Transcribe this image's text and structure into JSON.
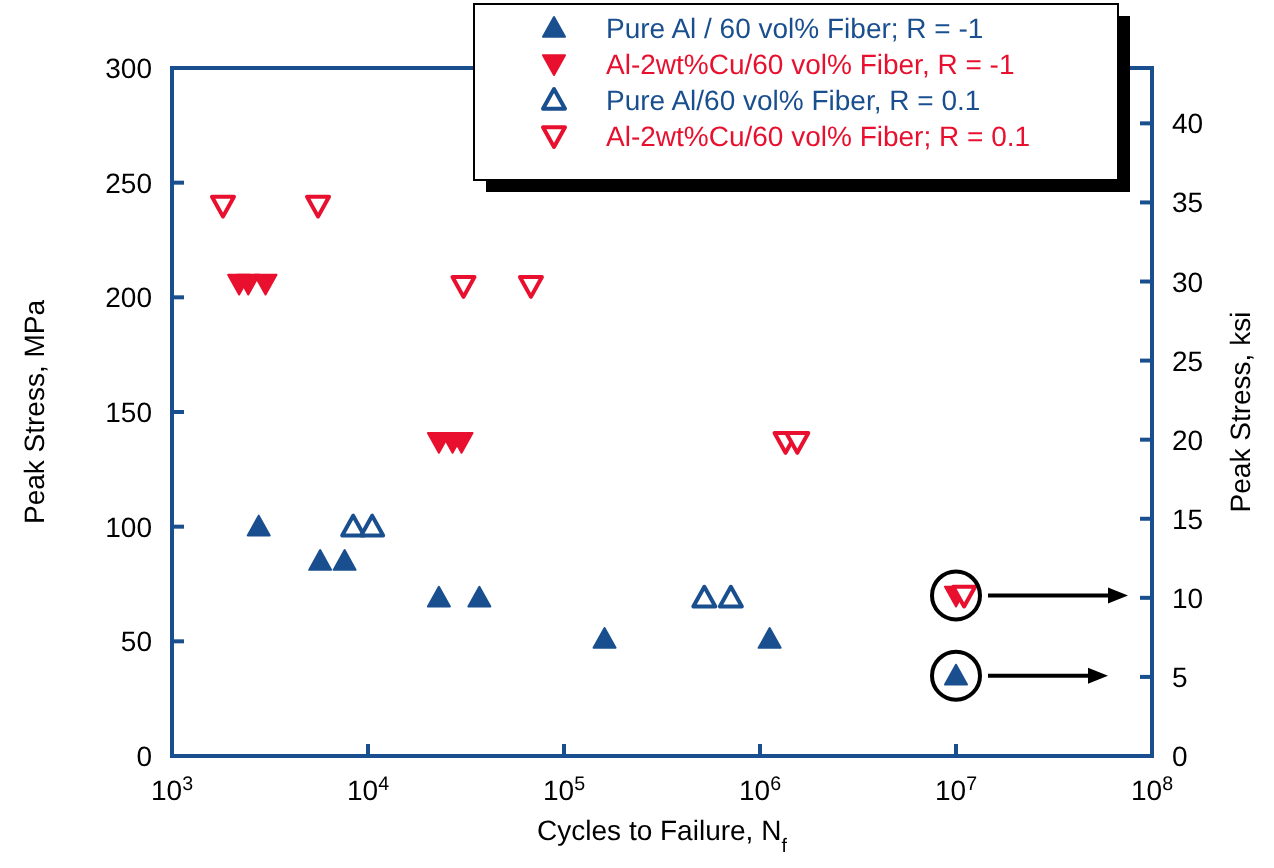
{
  "chart_data": {
    "type": "scatter",
    "xlabel": "Cycles to Failure, N$_{f}$",
    "ylabel": "Peak Stress, MPa",
    "y2label": "Peak Stress, ksi",
    "log": "x",
    "xlim": [
      1000,
      100000000
    ],
    "xticks": [
      {
        "value": 1000,
        "label": "10$^{3}$"
      },
      {
        "value": 10000,
        "label": "10$^{4}$"
      },
      {
        "value": 100000,
        "label": "10$^{5}$"
      },
      {
        "value": 1000000,
        "label": "10$^{6}$"
      },
      {
        "value": 10000000,
        "label": "10$^{7}$"
      },
      {
        "value": 100000000,
        "label": "10$^{8}$"
      }
    ],
    "ylim": [
      0,
      300
    ],
    "yticks": [
      0,
      50,
      100,
      150,
      200,
      250,
      300
    ],
    "y2lim": [
      0,
      43.5
    ],
    "y2ticks": [
      0,
      5,
      10,
      15,
      20,
      25,
      30,
      35,
      40
    ],
    "legend": "top right",
    "grid": false,
    "series": [
      {
        "name": "Pure Al / 60 vol% Fiber;  R = -1",
        "color": "#1a4f8f",
        "marker": "triangle",
        "x": [
          2770,
          5700,
          7600,
          23000,
          37000,
          161000,
          1120000,
          10000000
        ],
        "values": [
          100,
          85,
          85,
          69,
          69,
          51,
          51,
          35
        ]
      },
      {
        "name": "Al-2wt%Cu/60 vol% Fiber, R = -1",
        "color": "#e8102e",
        "marker": "triangle-down",
        "x": [
          2200,
          2450,
          3000,
          23000,
          27000,
          30000,
          10000000
        ],
        "values": [
          206,
          206,
          206,
          137,
          137,
          137,
          70
        ]
      },
      {
        "name": "Pure Al/60 vol% Fiber,  R = 0.1",
        "color": "#1a4f8f",
        "marker": "triangle-open",
        "x": [
          8400,
          10500,
          520000,
          710000
        ],
        "values": [
          100,
          100,
          69,
          69
        ]
      },
      {
        "name": "Al-2wt%Cu/60 vol% Fiber; R = 0.1",
        "color": "#e8102e",
        "marker": "triangle-down-open",
        "x": [
          1820,
          5560,
          30700,
          67800,
          1350000,
          1550000,
          11000000
        ],
        "values": [
          240,
          240,
          205,
          205,
          137,
          137,
          70
        ]
      }
    ]
  }
}
